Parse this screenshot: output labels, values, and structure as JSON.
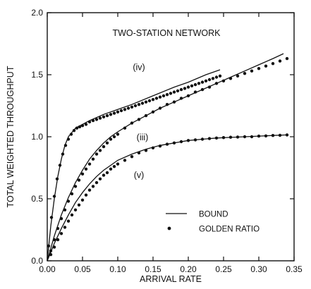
{
  "chart_data": {
    "type": "line",
    "title": "TWO-STATION NETWORK",
    "xlabel": "ARRIVAL RATE",
    "ylabel": "TOTAL WEIGHTED THROUGHPUT",
    "xlim": [
      0.0,
      0.35
    ],
    "ylim": [
      0.0,
      2.0
    ],
    "x_ticks": [
      {
        "value": 0.0,
        "label": "0.00"
      },
      {
        "value": 0.05,
        "label": "0.05"
      },
      {
        "value": 0.1,
        "label": "0.10"
      },
      {
        "value": 0.15,
        "label": "0.15"
      },
      {
        "value": 0.2,
        "label": "0.20"
      },
      {
        "value": 0.25,
        "label": "0.25"
      },
      {
        "value": 0.3,
        "label": "0.30"
      },
      {
        "value": 0.35,
        "label": "0.35"
      }
    ],
    "y_ticks": [
      {
        "value": 0.0,
        "label": "0.0"
      },
      {
        "value": 0.5,
        "label": "0.5"
      },
      {
        "value": 1.0,
        "label": "1.0"
      },
      {
        "value": 1.5,
        "label": "1.5"
      },
      {
        "value": 2.0,
        "label": "2.0"
      }
    ],
    "grid": false,
    "legend": {
      "position": "bottom-right",
      "entries": [
        {
          "label": "BOUND",
          "style": "line"
        },
        {
          "label": "GOLDEN RATIO",
          "style": "dots"
        }
      ]
    },
    "curve_labels": [
      {
        "text": "(iv)",
        "x": 0.13,
        "y": 1.56
      },
      {
        "text": "(iii)",
        "x": 0.135,
        "y": 0.995
      },
      {
        "text": "(v)",
        "x": 0.13,
        "y": 0.69
      }
    ],
    "series": [
      {
        "curve": "(iv)",
        "style": "line",
        "x": [
          0.0,
          0.005,
          0.01,
          0.015,
          0.02,
          0.025,
          0.03,
          0.04,
          0.05,
          0.06,
          0.08,
          0.1,
          0.12,
          0.15,
          0.18,
          0.2,
          0.225,
          0.245
        ],
        "y": [
          0.0,
          0.28,
          0.5,
          0.68,
          0.82,
          0.93,
          1.0,
          1.07,
          1.1,
          1.13,
          1.18,
          1.22,
          1.26,
          1.33,
          1.4,
          1.44,
          1.5,
          1.54
        ]
      },
      {
        "curve": "(iv)",
        "style": "dots",
        "x": [
          0.002,
          0.006,
          0.01,
          0.014,
          0.018,
          0.022,
          0.026,
          0.03,
          0.034,
          0.038,
          0.042,
          0.046,
          0.05,
          0.055,
          0.06,
          0.065,
          0.07,
          0.075,
          0.08,
          0.085,
          0.09,
          0.095,
          0.1,
          0.105,
          0.11,
          0.115,
          0.12,
          0.125,
          0.13,
          0.135,
          0.14,
          0.145,
          0.15,
          0.155,
          0.16,
          0.165,
          0.17,
          0.175,
          0.18,
          0.185,
          0.19,
          0.195,
          0.2,
          0.205,
          0.21,
          0.215,
          0.22,
          0.225,
          0.23,
          0.235,
          0.24,
          0.245
        ],
        "y": [
          0.12,
          0.35,
          0.52,
          0.66,
          0.77,
          0.86,
          0.93,
          0.98,
          1.02,
          1.05,
          1.07,
          1.08,
          1.09,
          1.1,
          1.12,
          1.13,
          1.14,
          1.15,
          1.16,
          1.17,
          1.18,
          1.19,
          1.2,
          1.21,
          1.22,
          1.23,
          1.24,
          1.25,
          1.26,
          1.27,
          1.28,
          1.29,
          1.3,
          1.31,
          1.32,
          1.33,
          1.34,
          1.35,
          1.36,
          1.37,
          1.38,
          1.39,
          1.4,
          1.41,
          1.42,
          1.43,
          1.44,
          1.45,
          1.46,
          1.47,
          1.48,
          1.49
        ]
      },
      {
        "curve": "(iii)",
        "style": "line",
        "x": [
          0.0,
          0.01,
          0.02,
          0.03,
          0.04,
          0.05,
          0.06,
          0.07,
          0.08,
          0.09,
          0.1,
          0.12,
          0.14,
          0.16,
          0.18,
          0.2,
          0.22,
          0.24,
          0.26,
          0.28,
          0.3,
          0.32,
          0.335
        ],
        "y": [
          0.0,
          0.2,
          0.37,
          0.51,
          0.63,
          0.73,
          0.82,
          0.89,
          0.95,
          1.0,
          1.04,
          1.11,
          1.17,
          1.23,
          1.28,
          1.33,
          1.38,
          1.43,
          1.48,
          1.53,
          1.58,
          1.63,
          1.67
        ]
      },
      {
        "curve": "(iii)",
        "style": "dots",
        "x": [
          0.005,
          0.01,
          0.015,
          0.02,
          0.025,
          0.03,
          0.035,
          0.04,
          0.045,
          0.05,
          0.055,
          0.06,
          0.065,
          0.07,
          0.075,
          0.08,
          0.085,
          0.09,
          0.095,
          0.1,
          0.11,
          0.12,
          0.13,
          0.14,
          0.15,
          0.16,
          0.17,
          0.18,
          0.19,
          0.2,
          0.21,
          0.22,
          0.23,
          0.24,
          0.25,
          0.26,
          0.27,
          0.28,
          0.29,
          0.3,
          0.31,
          0.32,
          0.33,
          0.34
        ],
        "y": [
          0.08,
          0.17,
          0.26,
          0.34,
          0.41,
          0.48,
          0.54,
          0.6,
          0.65,
          0.7,
          0.74,
          0.78,
          0.82,
          0.86,
          0.89,
          0.92,
          0.95,
          0.98,
          1.0,
          1.02,
          1.07,
          1.11,
          1.14,
          1.17,
          1.2,
          1.23,
          1.26,
          1.28,
          1.31,
          1.33,
          1.36,
          1.38,
          1.4,
          1.43,
          1.45,
          1.47,
          1.49,
          1.51,
          1.53,
          1.55,
          1.57,
          1.59,
          1.61,
          1.63
        ]
      },
      {
        "curve": "(v)",
        "style": "line",
        "x": [
          0.0,
          0.01,
          0.02,
          0.03,
          0.04,
          0.05,
          0.06,
          0.07,
          0.08,
          0.09,
          0.1,
          0.12,
          0.14,
          0.16,
          0.18,
          0.2,
          0.22,
          0.24,
          0.26,
          0.28,
          0.3,
          0.32,
          0.34
        ],
        "y": [
          0.0,
          0.14,
          0.26,
          0.37,
          0.47,
          0.55,
          0.62,
          0.68,
          0.73,
          0.77,
          0.81,
          0.86,
          0.9,
          0.93,
          0.95,
          0.97,
          0.98,
          0.99,
          0.995,
          1.0,
          1.005,
          1.01,
          1.015
        ]
      },
      {
        "curve": "(v)",
        "style": "dots",
        "x": [
          0.005,
          0.01,
          0.015,
          0.02,
          0.025,
          0.03,
          0.035,
          0.04,
          0.045,
          0.05,
          0.055,
          0.06,
          0.065,
          0.07,
          0.075,
          0.08,
          0.085,
          0.09,
          0.095,
          0.1,
          0.11,
          0.12,
          0.13,
          0.14,
          0.15,
          0.16,
          0.17,
          0.18,
          0.19,
          0.2,
          0.21,
          0.22,
          0.23,
          0.24,
          0.25,
          0.26,
          0.27,
          0.28,
          0.29,
          0.3,
          0.31,
          0.32,
          0.33,
          0.34
        ],
        "y": [
          0.05,
          0.11,
          0.17,
          0.22,
          0.27,
          0.32,
          0.37,
          0.41,
          0.45,
          0.49,
          0.53,
          0.57,
          0.6,
          0.63,
          0.66,
          0.69,
          0.71,
          0.74,
          0.76,
          0.78,
          0.81,
          0.84,
          0.87,
          0.89,
          0.91,
          0.925,
          0.94,
          0.95,
          0.96,
          0.97,
          0.975,
          0.98,
          0.985,
          0.99,
          0.993,
          0.996,
          0.998,
          1.0,
          1.0,
          1.005,
          1.007,
          1.01,
          1.012,
          1.015
        ]
      }
    ]
  }
}
